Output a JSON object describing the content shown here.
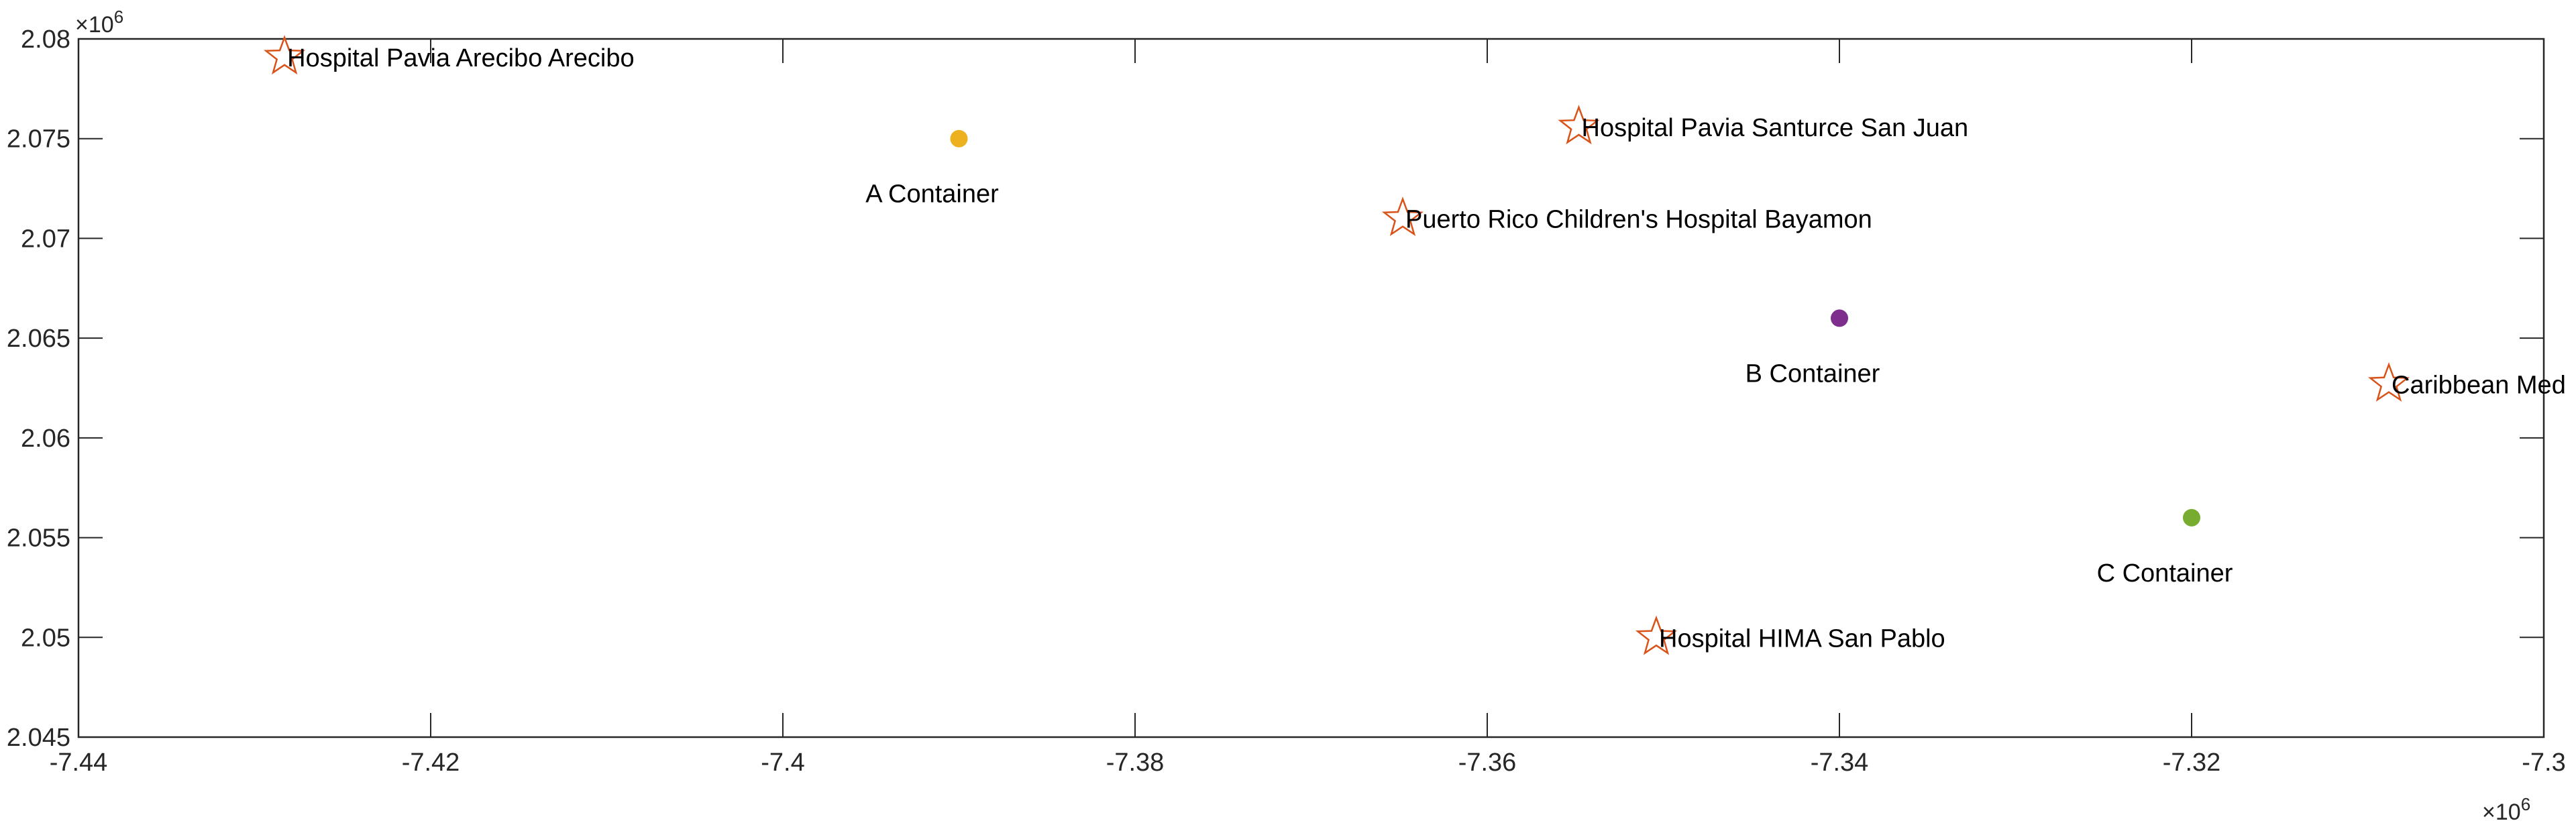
{
  "chart_data": {
    "type": "scatter",
    "title": "",
    "xlabel": "",
    "ylabel": "",
    "xlim": [
      -7440000,
      -7300000
    ],
    "ylim": [
      2045000,
      2080000
    ],
    "x_ticks": [
      -7440000,
      -7420000,
      -7400000,
      -7380000,
      -7360000,
      -7340000,
      -7320000,
      -7300000
    ],
    "x_tick_labels": [
      "-7.44",
      "-7.42",
      "-7.4",
      "-7.38",
      "-7.36",
      "-7.34",
      "-7.32",
      "-7.3"
    ],
    "y_ticks": [
      2045000,
      2050000,
      2055000,
      2060000,
      2065000,
      2070000,
      2075000,
      2080000
    ],
    "y_tick_labels": [
      "2.045",
      "2.05",
      "2.055",
      "2.06",
      "2.065",
      "2.07",
      "2.075",
      "2.08"
    ],
    "x_exponent": {
      "base": "×10",
      "power": "6"
    },
    "y_exponent": {
      "base": "×10",
      "power": "6"
    },
    "grid": false,
    "box": true,
    "series": [
      {
        "marker": "star",
        "color": "#D95319",
        "points": [
          {
            "x": -7428300,
            "y": 2079100,
            "label": "Hospital Pavia Arecibo Arecibo"
          },
          {
            "x": -7354800,
            "y": 2075600,
            "label": "Hospital Pavia Santurce San Juan"
          },
          {
            "x": -7364800,
            "y": 2071000,
            "label": "Puerto Rico Children's Hospital Bayamon"
          },
          {
            "x": -7308800,
            "y": 2062700,
            "label": "Caribbean Med"
          },
          {
            "x": -7350400,
            "y": 2050000,
            "label": "Hospital HIMA San Pablo"
          }
        ]
      },
      {
        "marker": "circle",
        "points": [
          {
            "x": -7390000,
            "y": 2075000,
            "label": "A Container",
            "color": "#EDB120"
          },
          {
            "x": -7340000,
            "y": 2066000,
            "label": "B Container",
            "color": "#7E2F8E"
          },
          {
            "x": -7320000,
            "y": 2056000,
            "label": "C Container",
            "color": "#77AC30"
          }
        ]
      }
    ]
  }
}
